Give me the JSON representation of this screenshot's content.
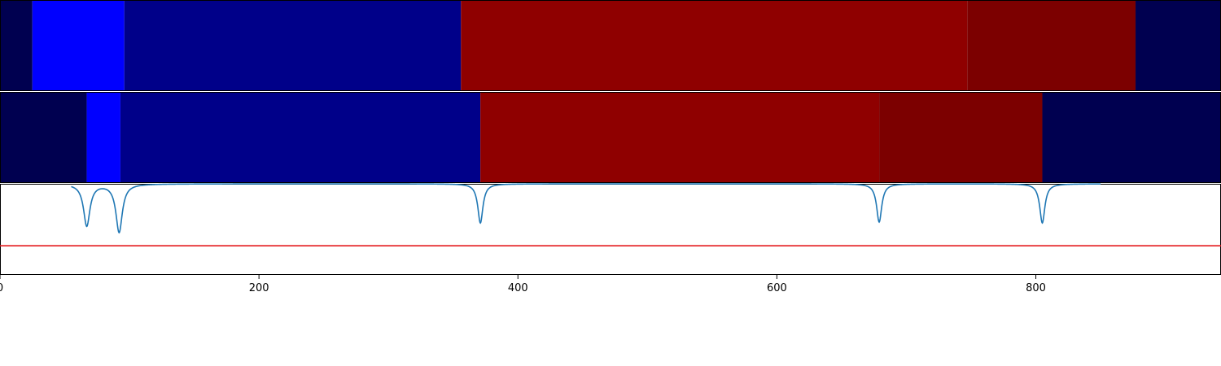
{
  "chart_data": {
    "type": "heatmap",
    "x_range": [
      0,
      943
    ],
    "xticks": [
      0,
      200,
      400,
      600,
      800
    ],
    "xtick_labels": [
      "0",
      "200",
      "400",
      "600",
      "800"
    ],
    "panels": [
      {
        "name": "",
        "type": "heatmap",
        "segments": [
          {
            "x0": 0,
            "x1": 25,
            "color": "#000050"
          },
          {
            "x0": 25,
            "x1": 96,
            "color": "#0000ff"
          },
          {
            "x0": 96,
            "x1": 356,
            "color": "#000089"
          },
          {
            "x0": 356,
            "x1": 747,
            "color": "#8f0000"
          },
          {
            "x0": 747,
            "x1": 877,
            "color": "#7c0000"
          },
          {
            "x0": 877,
            "x1": 943,
            "color": "#000050"
          }
        ]
      },
      {
        "name": "",
        "type": "heatmap",
        "segments": [
          {
            "x0": 0,
            "x1": 67,
            "color": "#000050"
          },
          {
            "x0": 67,
            "x1": 93,
            "color": "#0000ff"
          },
          {
            "x0": 93,
            "x1": 371,
            "color": "#000089"
          },
          {
            "x0": 371,
            "x1": 679,
            "color": "#8f0000"
          },
          {
            "x0": 679,
            "x1": 805,
            "color": "#7c0000"
          },
          {
            "x0": 805,
            "x1": 943,
            "color": "#000050"
          }
        ]
      },
      {
        "name": "",
        "type": "line",
        "ylim": [
          -1.0,
          0.0
        ],
        "baseline": 0.0,
        "threshold": -0.68,
        "threshold_color": "#e41a1c",
        "line_color": "#1f77b4",
        "dips": [
          {
            "center": 67,
            "depth": 0.46,
            "width": 3.0
          },
          {
            "center": 92,
            "depth": 0.53,
            "width": 3.0
          },
          {
            "center": 371,
            "depth": 0.43,
            "width": 2.4
          },
          {
            "center": 679,
            "depth": 0.42,
            "width": 2.4
          },
          {
            "center": 805,
            "depth": 0.43,
            "width": 2.4
          }
        ]
      }
    ]
  }
}
